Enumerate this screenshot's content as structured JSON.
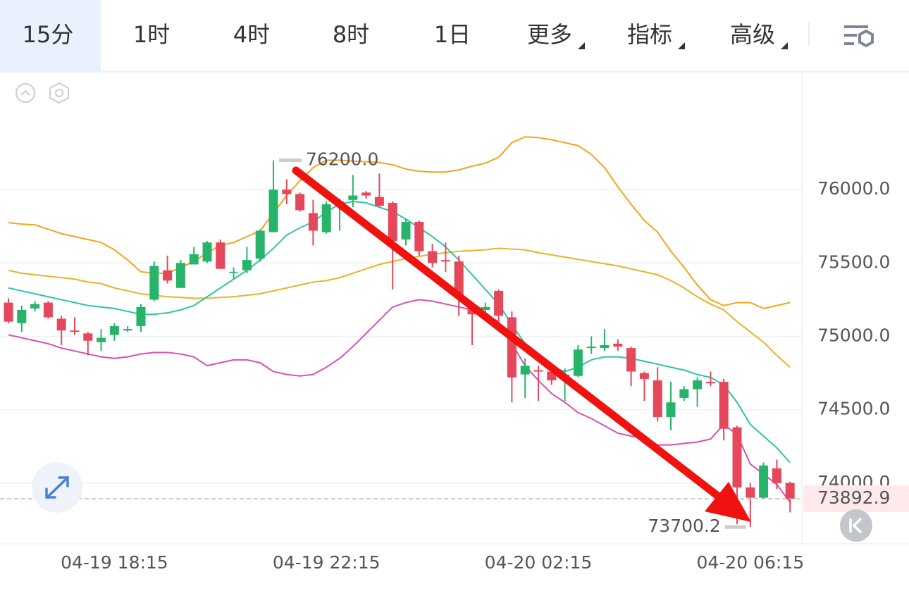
{
  "toolbar": {
    "tabs": [
      "15分",
      "1时",
      "4时",
      "8时",
      "1日",
      "更多",
      "指标",
      "高级"
    ],
    "selected": 0
  },
  "chart_data": {
    "type": "candlestick",
    "up_color": "#27b46a",
    "down_color": "#e5485a",
    "categories": [
      null,
      null,
      null,
      null,
      null,
      null,
      null,
      null,
      "04-19 18:15",
      null,
      null,
      null,
      null,
      null,
      null,
      null,
      null,
      null,
      null,
      null,
      null,
      null,
      null,
      null,
      "04-19 22:15",
      null,
      null,
      null,
      null,
      null,
      null,
      null,
      null,
      null,
      null,
      null,
      null,
      null,
      null,
      null,
      "04-20 02:15",
      null,
      null,
      null,
      null,
      null,
      null,
      null,
      null,
      null,
      null,
      null,
      null,
      null,
      null,
      null,
      "04-20 06:15",
      null,
      null,
      null
    ],
    "open": [
      75230,
      75090,
      75190,
      75230,
      75120,
      75040,
      75020,
      74960,
      75010,
      75040,
      75070,
      75250,
      75450,
      75330,
      75490,
      75510,
      75640,
      75440,
      75450,
      75530,
      75710,
      76000,
      75970,
      75840,
      75710,
      75910,
      75930,
      75980,
      75950,
      75910,
      75660,
      75780,
      75580,
      75520,
      75510,
      75200,
      75180,
      75310,
      75130,
      74740,
      74770,
      74760,
      74720,
      74730,
      74920,
      74920,
      74950,
      74920,
      74750,
      74700,
      74450,
      74580,
      74640,
      74690,
      74690,
      74380,
      73970,
      73900,
      74100,
      74000
    ],
    "high": [
      75260,
      75210,
      75240,
      75240,
      75140,
      75130,
      75030,
      75050,
      75090,
      75070,
      75220,
      75510,
      75550,
      75520,
      75610,
      75650,
      75660,
      75470,
      75610,
      75730,
      76200,
      76070,
      75980,
      75930,
      75920,
      75940,
      76100,
      75990,
      76110,
      75920,
      75800,
      75790,
      75630,
      75640,
      75550,
      75220,
      75230,
      75320,
      75170,
      74850,
      74800,
      74790,
      74780,
      74940,
      75000,
      75050,
      74980,
      74930,
      74760,
      74790,
      74690,
      74660,
      74720,
      74760,
      74710,
      74390,
      74000,
      74140,
      74160,
      74010
    ],
    "low": [
      75090,
      75030,
      75170,
      75120,
      74940,
      75010,
      74870,
      74900,
      74970,
      75030,
      75030,
      75240,
      75360,
      75330,
      75490,
      75500,
      75460,
      75390,
      75430,
      75510,
      75710,
      75900,
      75850,
      75620,
      75700,
      75720,
      75880,
      75940,
      75880,
      75320,
      75620,
      75550,
      75470,
      75440,
      75140,
      74940,
      75150,
      75060,
      74550,
      74580,
      74560,
      74670,
      74560,
      74720,
      74880,
      74900,
      74900,
      74660,
      74560,
      74420,
      74360,
      74560,
      74520,
      74660,
      74290,
      73720,
      73700.2,
      73890,
      73960,
      73800
    ],
    "close": [
      75100,
      75180,
      75220,
      75130,
      75040,
      75030,
      74970,
      74990,
      75070,
      75050,
      75200,
      75480,
      75380,
      75500,
      75560,
      75640,
      75460,
      75440,
      75520,
      75720,
      76000,
      75970,
      75860,
      75720,
      75900,
      75920,
      75960,
      75960,
      75890,
      75650,
      75780,
      75580,
      75500,
      75510,
      75280,
      75150,
      75200,
      75140,
      74720,
      74800,
      74760,
      74700,
      74740,
      74910,
      74930,
      74940,
      74930,
      74760,
      74710,
      74450,
      74550,
      74640,
      74700,
      74680,
      74370,
      73970,
      73900,
      74120,
      74000,
      73892.9
    ],
    "lines": [
      {
        "color": "#f2a51a",
        "values": [
          75775,
          75765,
          75760,
          75730,
          75700,
          75680,
          75660,
          75640,
          75590,
          75520,
          75440,
          75430,
          75430,
          75470,
          75510,
          75570,
          75620,
          75640,
          75680,
          75720,
          75840,
          75960,
          76060,
          76150,
          76200,
          76200,
          76195,
          76190,
          76185,
          76170,
          76140,
          76125,
          76120,
          76120,
          76135,
          76160,
          76180,
          76220,
          76320,
          76360,
          76355,
          76340,
          76320,
          76300,
          76240,
          76150,
          76020,
          75900,
          75790,
          75710,
          75580,
          75470,
          75350,
          75250,
          75210,
          75230,
          75230,
          75190,
          75210,
          75230
        ]
      },
      {
        "color": "#eab324",
        "values": [
          75450,
          75430,
          75420,
          75410,
          75400,
          75390,
          75370,
          75360,
          75330,
          75310,
          75290,
          75280,
          75270,
          75265,
          75260,
          75260,
          75265,
          75270,
          75280,
          75290,
          75310,
          75330,
          75350,
          75370,
          75380,
          75400,
          75430,
          75460,
          75490,
          75510,
          75530,
          75545,
          75560,
          75570,
          75580,
          75585,
          75590,
          75600,
          75595,
          75590,
          75570,
          75555,
          75540,
          75525,
          75510,
          75495,
          75480,
          75460,
          75440,
          75420,
          75380,
          75330,
          75270,
          75220,
          75180,
          75100,
          75030,
          74960,
          74870,
          74790
        ]
      },
      {
        "color": "#2ec4a9",
        "values": [
          75330,
          75310,
          75290,
          75270,
          75250,
          75230,
          75210,
          75200,
          75190,
          75170,
          75150,
          75150,
          75160,
          75180,
          75210,
          75270,
          75330,
          75390,
          75450,
          75520,
          75600,
          75690,
          75740,
          75780,
          75850,
          75900,
          75920,
          75910,
          75880,
          75850,
          75800,
          75740,
          75680,
          75610,
          75520,
          75420,
          75320,
          75220,
          75080,
          74950,
          74850,
          74790,
          74760,
          74790,
          74840,
          74860,
          74860,
          74850,
          74830,
          74810,
          74790,
          74770,
          74740,
          74720,
          74670,
          74550,
          74400,
          74320,
          74240,
          74140
        ]
      },
      {
        "color": "#d94fb4",
        "values": [
          75010,
          74990,
          74970,
          74950,
          74920,
          74900,
          74880,
          74860,
          74850,
          74860,
          74880,
          74890,
          74890,
          74880,
          74860,
          74800,
          74820,
          74840,
          74840,
          74820,
          74760,
          74740,
          74730,
          74740,
          74790,
          74850,
          74930,
          75020,
          75110,
          75200,
          75230,
          75250,
          75240,
          75220,
          75200,
          75180,
          75150,
          75100,
          74950,
          74800,
          74700,
          74610,
          74550,
          74480,
          74440,
          74390,
          74340,
          74320,
          74310,
          74260,
          74260,
          74270,
          74280,
          74300,
          74400,
          74330,
          74130,
          74060,
          73990,
          73870
        ]
      }
    ],
    "ylim": [
      73586,
      76798
    ],
    "yticks": [
      {
        "value": 74000,
        "label": "74000.0"
      },
      {
        "value": 74500,
        "label": "74500.0"
      },
      {
        "value": 75000,
        "label": "75000.0"
      },
      {
        "value": 75500,
        "label": "75500.0"
      },
      {
        "value": 76000,
        "label": "76000.0"
      }
    ],
    "max_label": {
      "value": 76200,
      "label": "76200.0"
    },
    "min_label": {
      "value": 73700.2,
      "label": "73700.2"
    },
    "last_price": {
      "value": 73892.9,
      "label": "73892.9"
    },
    "grid": true
  }
}
